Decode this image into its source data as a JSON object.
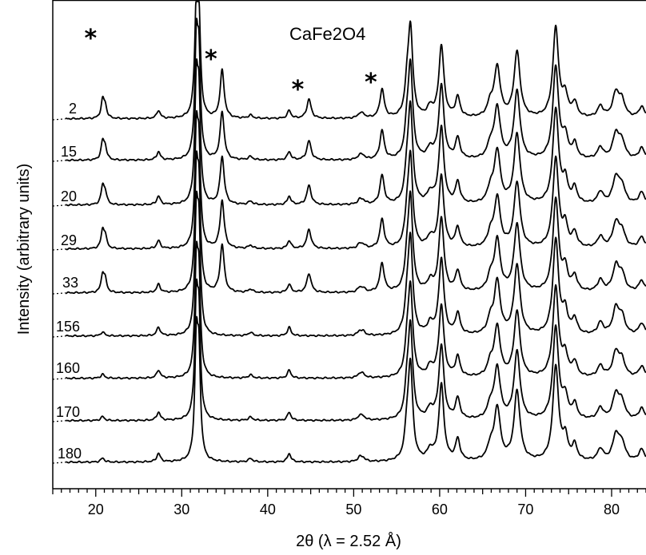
{
  "chart_data": {
    "type": "line",
    "title": "CaFe2O4",
    "xlabel": "2θ  (λ = 2.52 Å)",
    "ylabel": "Intensity (arbitrary units)",
    "xlim": [
      15,
      84
    ],
    "x_ticks": [
      20,
      30,
      40,
      50,
      60,
      70,
      80
    ],
    "minor_tick_step": 1,
    "stacked_offset": true,
    "grid": false,
    "impurity_marker": "*",
    "impurity_peaks": [
      20.7,
      34.7,
      44.8,
      53.3
    ],
    "series": [
      {
        "name": "2",
        "impurity_present": true
      },
      {
        "name": "15",
        "impurity_present": true
      },
      {
        "name": "20",
        "impurity_present": true
      },
      {
        "name": "29",
        "impurity_present": true
      },
      {
        "name": "33",
        "impurity_present": true
      },
      {
        "name": "156",
        "impurity_present": false
      },
      {
        "name": "160",
        "impurity_present": false
      },
      {
        "name": "170",
        "impurity_present": false
      },
      {
        "name": "180",
        "impurity_present": false
      }
    ],
    "peaks": [
      {
        "x": 20.8,
        "height": 22,
        "width": 0.22,
        "family": "impurity"
      },
      {
        "x": 21.1,
        "height": 14,
        "width": 0.22,
        "family": "impurity"
      },
      {
        "x": 27.3,
        "height": 10,
        "width": 0.25,
        "family": "main"
      },
      {
        "x": 31.7,
        "height": 130,
        "width": 0.22,
        "family": "main"
      },
      {
        "x": 32.0,
        "height": 110,
        "width": 0.22,
        "family": "main"
      },
      {
        "x": 34.7,
        "height": 60,
        "width": 0.28,
        "family": "impurity"
      },
      {
        "x": 38.0,
        "height": 4,
        "width": 0.3,
        "family": "main"
      },
      {
        "x": 42.5,
        "height": 10,
        "width": 0.25,
        "family": "main"
      },
      {
        "x": 44.8,
        "height": 24,
        "width": 0.3,
        "family": "impurity"
      },
      {
        "x": 50.7,
        "height": 5,
        "width": 0.3,
        "family": "main"
      },
      {
        "x": 51.1,
        "height": 4,
        "width": 0.3,
        "family": "main"
      },
      {
        "x": 53.3,
        "height": 36,
        "width": 0.3,
        "family": "impurity"
      },
      {
        "x": 56.6,
        "height": 110,
        "width": 0.32,
        "family": "main"
      },
      {
        "x": 56.2,
        "height": 30,
        "width": 0.3,
        "family": "main"
      },
      {
        "x": 58.9,
        "height": 12,
        "width": 0.4,
        "family": "main"
      },
      {
        "x": 60.2,
        "height": 90,
        "width": 0.35,
        "family": "main"
      },
      {
        "x": 62.1,
        "height": 25,
        "width": 0.32,
        "family": "main"
      },
      {
        "x": 66.7,
        "height": 62,
        "width": 0.42,
        "family": "main"
      },
      {
        "x": 65.9,
        "height": 16,
        "width": 0.4,
        "family": "main"
      },
      {
        "x": 69.0,
        "height": 82,
        "width": 0.42,
        "family": "main"
      },
      {
        "x": 73.5,
        "height": 112,
        "width": 0.4,
        "family": "main"
      },
      {
        "x": 74.6,
        "height": 26,
        "width": 0.35,
        "family": "main"
      },
      {
        "x": 75.7,
        "height": 18,
        "width": 0.35,
        "family": "main"
      },
      {
        "x": 78.7,
        "height": 14,
        "width": 0.4,
        "family": "main"
      },
      {
        "x": 80.5,
        "height": 30,
        "width": 0.45,
        "family": "main"
      },
      {
        "x": 81.2,
        "height": 20,
        "width": 0.45,
        "family": "main"
      },
      {
        "x": 83.5,
        "height": 14,
        "width": 0.4,
        "family": "main"
      }
    ]
  }
}
